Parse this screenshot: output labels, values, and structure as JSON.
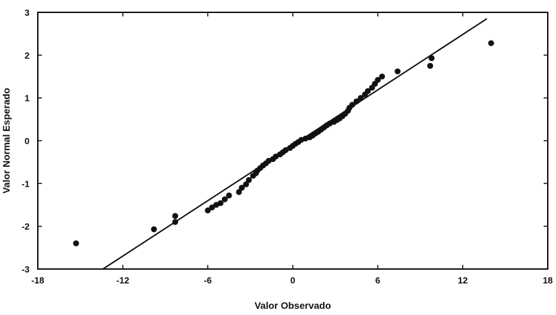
{
  "chart_data": {
    "type": "scatter",
    "title": "",
    "xlabel": "Valor Observado",
    "ylabel": "Valor Normal Esperado",
    "xlim": [
      -18,
      18
    ],
    "ylim": [
      -3,
      3
    ],
    "xticks": [
      "-18",
      "-12",
      "-6",
      "0",
      "6",
      "12",
      "18"
    ],
    "yticks": [
      "3",
      "2",
      "1",
      "0",
      "-1",
      "-2",
      "-3"
    ],
    "grid": false,
    "legend": "none",
    "marker_color": "#111111",
    "line_color": "#111111",
    "reference_line": {
      "x": [
        -13.4,
        13.7
      ],
      "y": [
        -3.0,
        2.85
      ]
    },
    "series": [
      {
        "values": [
          {
            "x": -15.3,
            "y": -2.4
          },
          {
            "x": -9.8,
            "y": -2.07
          },
          {
            "x": -8.3,
            "y": -1.9
          },
          {
            "x": -8.3,
            "y": -1.76
          },
          {
            "x": -6.0,
            "y": -1.63
          },
          {
            "x": -5.7,
            "y": -1.56
          },
          {
            "x": -5.4,
            "y": -1.5
          },
          {
            "x": -5.1,
            "y": -1.46
          },
          {
            "x": -4.8,
            "y": -1.37
          },
          {
            "x": -4.5,
            "y": -1.28
          },
          {
            "x": -3.8,
            "y": -1.2
          },
          {
            "x": -3.6,
            "y": -1.1
          },
          {
            "x": -3.3,
            "y": -1.02
          },
          {
            "x": -3.1,
            "y": -0.92
          },
          {
            "x": -2.8,
            "y": -0.82
          },
          {
            "x": -2.6,
            "y": -0.76
          },
          {
            "x": -2.5,
            "y": -0.7
          },
          {
            "x": -2.3,
            "y": -0.64
          },
          {
            "x": -2.1,
            "y": -0.58
          },
          {
            "x": -1.9,
            "y": -0.53
          },
          {
            "x": -1.7,
            "y": -0.47
          },
          {
            "x": -1.4,
            "y": -0.43
          },
          {
            "x": -1.2,
            "y": -0.37
          },
          {
            "x": -0.9,
            "y": -0.32
          },
          {
            "x": -0.7,
            "y": -0.27
          },
          {
            "x": -0.5,
            "y": -0.22
          },
          {
            "x": -0.2,
            "y": -0.17
          },
          {
            "x": 0.0,
            "y": -0.12
          },
          {
            "x": 0.2,
            "y": -0.07
          },
          {
            "x": 0.4,
            "y": -0.03
          },
          {
            "x": 0.6,
            "y": 0.02
          },
          {
            "x": 0.9,
            "y": 0.05
          },
          {
            "x": 1.2,
            "y": 0.08
          },
          {
            "x": 1.4,
            "y": 0.12
          },
          {
            "x": 1.6,
            "y": 0.17
          },
          {
            "x": 1.8,
            "y": 0.21
          },
          {
            "x": 2.0,
            "y": 0.26
          },
          {
            "x": 2.2,
            "y": 0.31
          },
          {
            "x": 2.4,
            "y": 0.36
          },
          {
            "x": 2.6,
            "y": 0.4
          },
          {
            "x": 2.9,
            "y": 0.44
          },
          {
            "x": 3.1,
            "y": 0.48
          },
          {
            "x": 3.3,
            "y": 0.52
          },
          {
            "x": 3.5,
            "y": 0.57
          },
          {
            "x": 3.7,
            "y": 0.63
          },
          {
            "x": 3.9,
            "y": 0.7
          },
          {
            "x": 4.0,
            "y": 0.77
          },
          {
            "x": 4.2,
            "y": 0.84
          },
          {
            "x": 4.5,
            "y": 0.92
          },
          {
            "x": 4.8,
            "y": 1.0
          },
          {
            "x": 5.1,
            "y": 1.08
          },
          {
            "x": 5.3,
            "y": 1.16
          },
          {
            "x": 5.6,
            "y": 1.24
          },
          {
            "x": 5.8,
            "y": 1.33
          },
          {
            "x": 6.0,
            "y": 1.42
          },
          {
            "x": 6.3,
            "y": 1.5
          },
          {
            "x": 7.4,
            "y": 1.62
          },
          {
            "x": 9.7,
            "y": 1.75
          },
          {
            "x": 9.8,
            "y": 1.93
          },
          {
            "x": 14.0,
            "y": 2.28
          }
        ]
      }
    ]
  }
}
